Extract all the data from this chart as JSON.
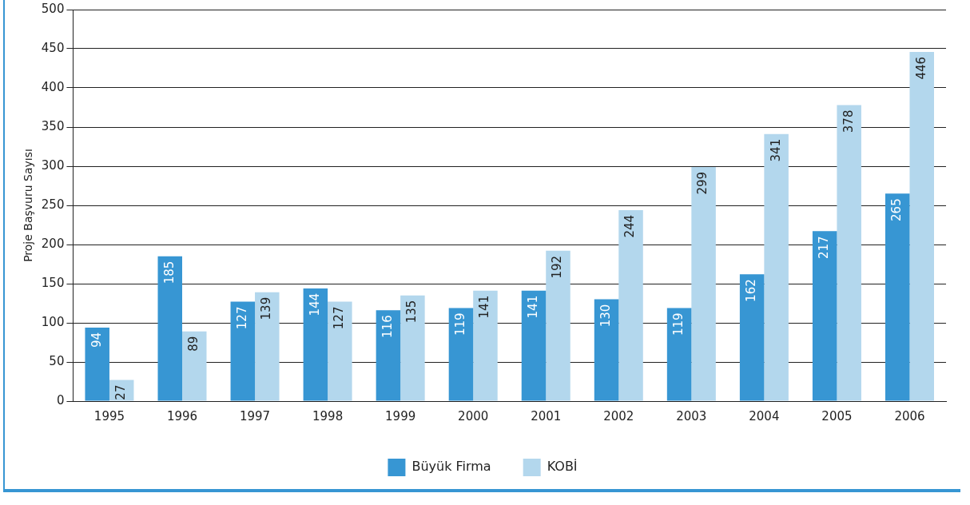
{
  "chart_data": {
    "type": "bar",
    "ylabel": "Proje Başvuru Sayısı",
    "categories": [
      "1995",
      "1996",
      "1997",
      "1998",
      "1999",
      "2000",
      "2001",
      "2002",
      "2003",
      "2004",
      "2005",
      "2006"
    ],
    "series": [
      {
        "name": "Büyük Firma",
        "color": "#3796d3",
        "values": [
          94,
          185,
          127,
          144,
          116,
          119,
          141,
          130,
          119,
          162,
          217,
          265
        ]
      },
      {
        "name": "KOBİ",
        "color": "#b3d7ed",
        "values": [
          27,
          89,
          139,
          127,
          135,
          141,
          192,
          244,
          299,
          341,
          378,
          446
        ]
      }
    ],
    "ylim": [
      0,
      500
    ],
    "yticks": [
      0,
      50,
      100,
      150,
      200,
      250,
      300,
      350,
      400,
      450,
      500
    ],
    "grid": "y",
    "legend": "bottom",
    "data_labels": true
  }
}
